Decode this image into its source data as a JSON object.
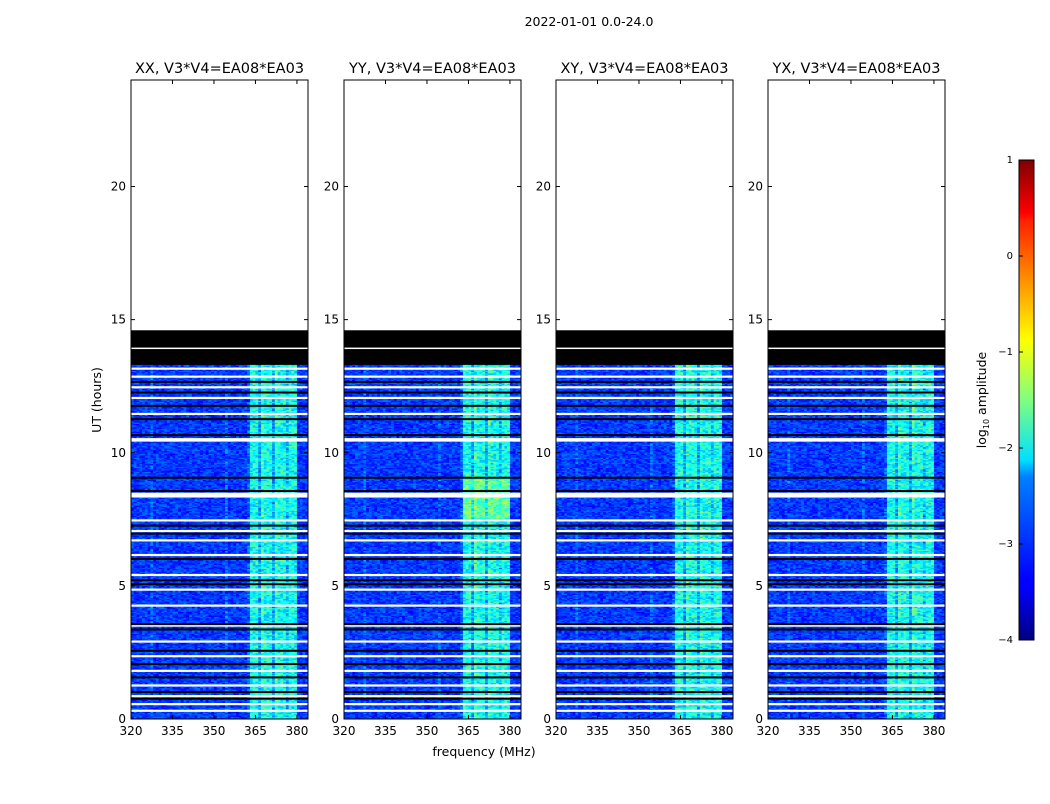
{
  "chart_data": {
    "type": "heatmap",
    "suptitle": "2022-01-01 0.0-24.0",
    "xlabel": "frequency (MHz)",
    "ylabel": "UT (hours)",
    "xlim": [
      320,
      384
    ],
    "ylim": [
      0,
      24
    ],
    "x_ticks": [
      "320",
      "335",
      "350",
      "365",
      "380"
    ],
    "y_ticks": [
      "0",
      "5",
      "10",
      "15",
      "20"
    ],
    "data_coverage_hours": [
      0,
      14.6
    ],
    "flagged_block_hours": [
      13.3,
      14.6
    ],
    "signal_band_mhz": [
      363.5,
      380
    ],
    "panels": [
      {
        "title": "XX, V3*V4=EA08*EA03",
        "polarization": "XX"
      },
      {
        "title": "YY, V3*V4=EA08*EA03",
        "polarization": "YY"
      },
      {
        "title": "XY, V3*V4=EA08*EA03",
        "polarization": "XY"
      },
      {
        "title": "YX, V3*V4=EA08*EA03",
        "polarization": "YX"
      }
    ],
    "colorbar": {
      "label_prefix": "log",
      "label_sub": "10",
      "label_suffix": " amplitude",
      "range": [
        -4,
        1
      ],
      "ticks": [
        "1",
        "0",
        "−1",
        "−2",
        "−3",
        "−4"
      ],
      "colormap": "jet"
    }
  }
}
